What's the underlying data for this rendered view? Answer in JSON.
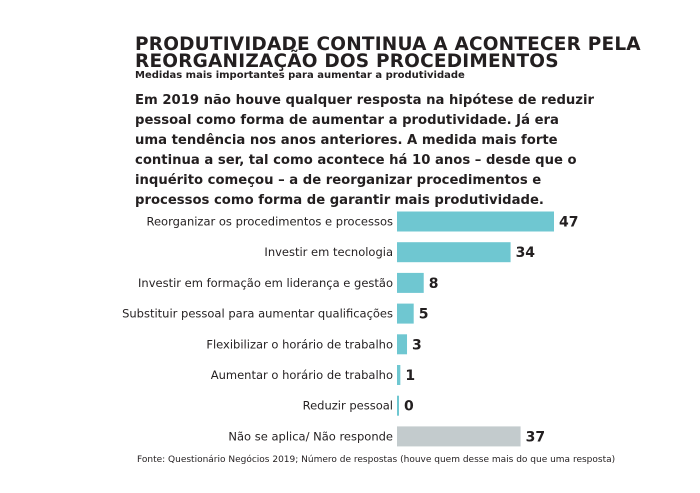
{
  "header": {
    "title": "PRODUTIVIDADE CONTINUA A ACONTECER PELA REORGANIZAÇÃO DOS PROCEDIMENTOS",
    "subtitle": "Medidas mais importantes para aumentar a produtividade",
    "intro": "Em 2019 não houve qualquer resposta na hipótese de reduzir pessoal como forma de aumentar a produtividade. Já era uma tendência nos anos anteriores. A medida mais forte continua a ser, tal como acontece há 10 anos – desde que o inquérito começou – a de reorganizar procedimentos e processos como forma de garantir mais produtividade."
  },
  "chart_data": {
    "type": "bar",
    "orientation": "horizontal",
    "categories": [
      "Reorganizar os procedimentos e processos",
      "Investir em tecnologia",
      "Investir em formação em liderança e gestão",
      "Substituir pessoal para aumentar qualificações",
      "Flexibilizar o horário de trabalho",
      "Aumentar o horário de trabalho",
      "Reduzir pessoal",
      "Não se aplica/ Não responde"
    ],
    "values": [
      47,
      34,
      8,
      5,
      3,
      1,
      0,
      37
    ],
    "value_labels": [
      "47",
      "34",
      "8",
      "5",
      "3",
      "1",
      "0",
      "37"
    ],
    "bar_colors": [
      "#6fc7d1",
      "#6fc7d1",
      "#6fc7d1",
      "#6fc7d1",
      "#6fc7d1",
      "#6fc7d1",
      "#6fc7d1",
      "#c3cbcd"
    ],
    "xlim": [
      0,
      47
    ],
    "grid": false,
    "legend": "none"
  },
  "footer": {
    "source": "Fonte: Questionário Negócios 2019; Número de respostas (houve quem desse mais do  que uma resposta)"
  }
}
